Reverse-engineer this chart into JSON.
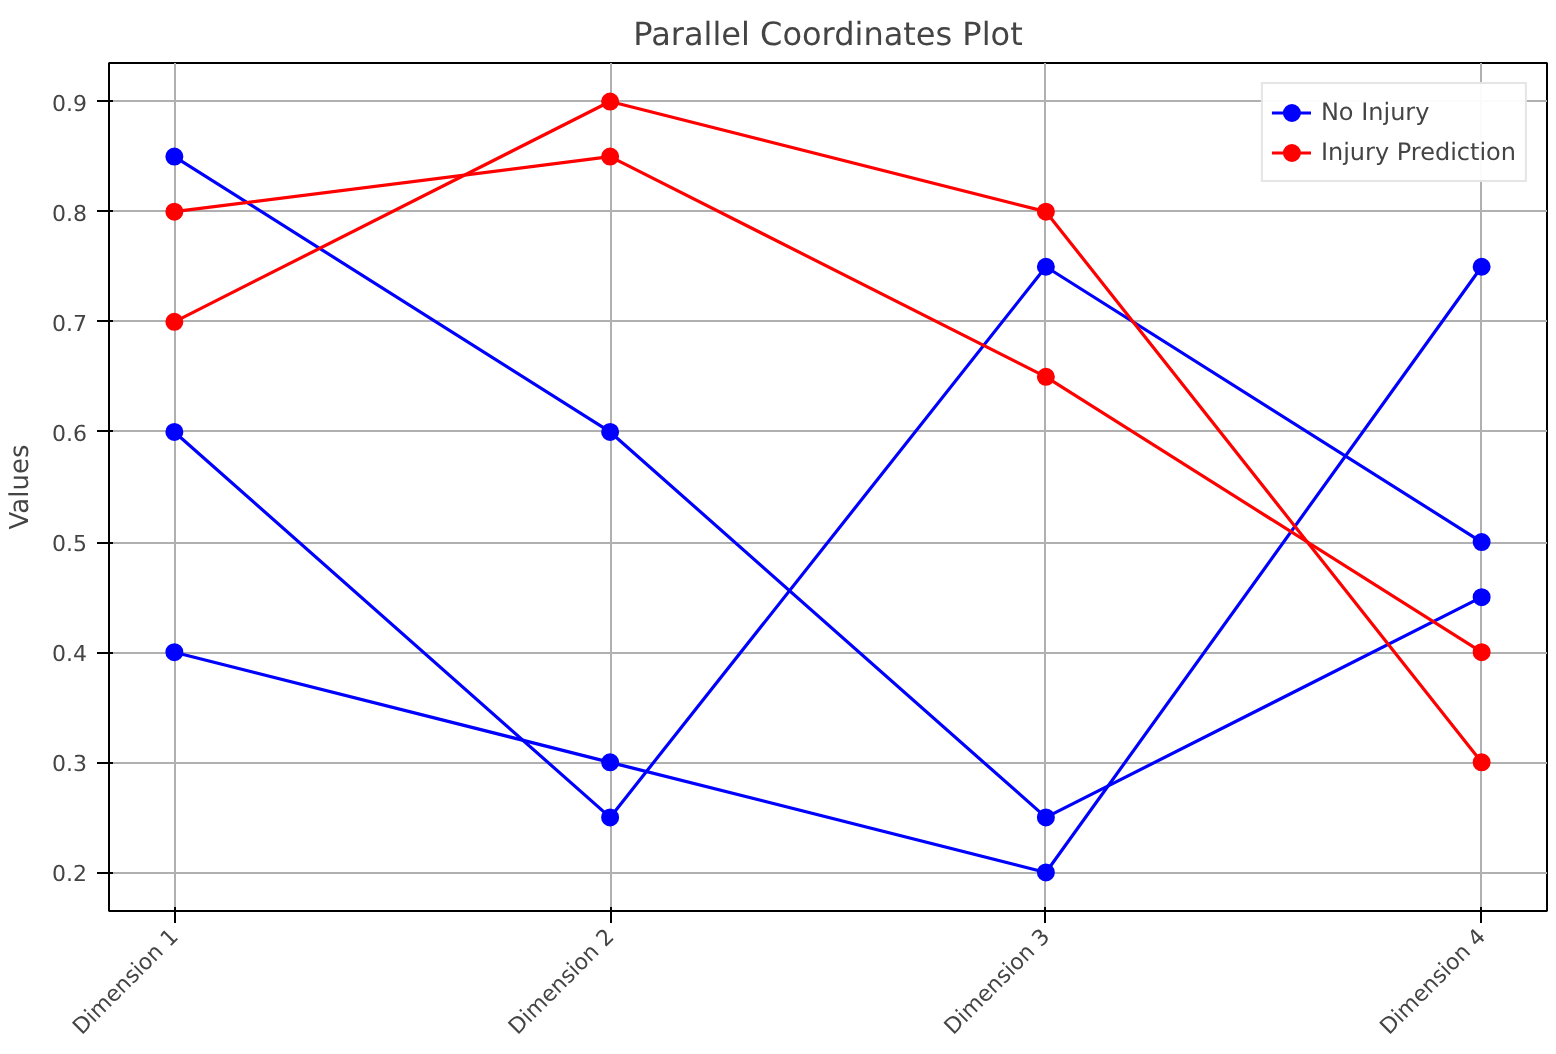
{
  "chart_data": {
    "type": "line",
    "title": "Parallel Coordinates Plot",
    "ylabel": "Values",
    "categories": [
      "Dimension 1",
      "Dimension 2",
      "Dimension 3",
      "Dimension 4"
    ],
    "series": [
      {
        "name": "No Injury",
        "color": "#0000ff",
        "values": [
          0.85,
          0.6,
          0.25,
          0.45
        ]
      },
      {
        "color": "#0000ff",
        "values": [
          0.6,
          0.25,
          0.75,
          0.5
        ]
      },
      {
        "color": "#0000ff",
        "values": [
          0.4,
          0.3,
          0.2,
          0.75
        ]
      },
      {
        "name": "Injury Prediction",
        "color": "#ff0000",
        "values": [
          0.8,
          0.85,
          0.65,
          0.4
        ]
      },
      {
        "color": "#ff0000",
        "values": [
          0.7,
          0.9,
          0.8,
          0.3
        ]
      }
    ],
    "ylim": [
      0.165,
      0.935
    ],
    "yticks": [
      0.2,
      0.3,
      0.4,
      0.5,
      0.6,
      0.7,
      0.8,
      0.9
    ],
    "grid": true,
    "legend": "top right",
    "marker": "circle",
    "line_style": "solid"
  }
}
